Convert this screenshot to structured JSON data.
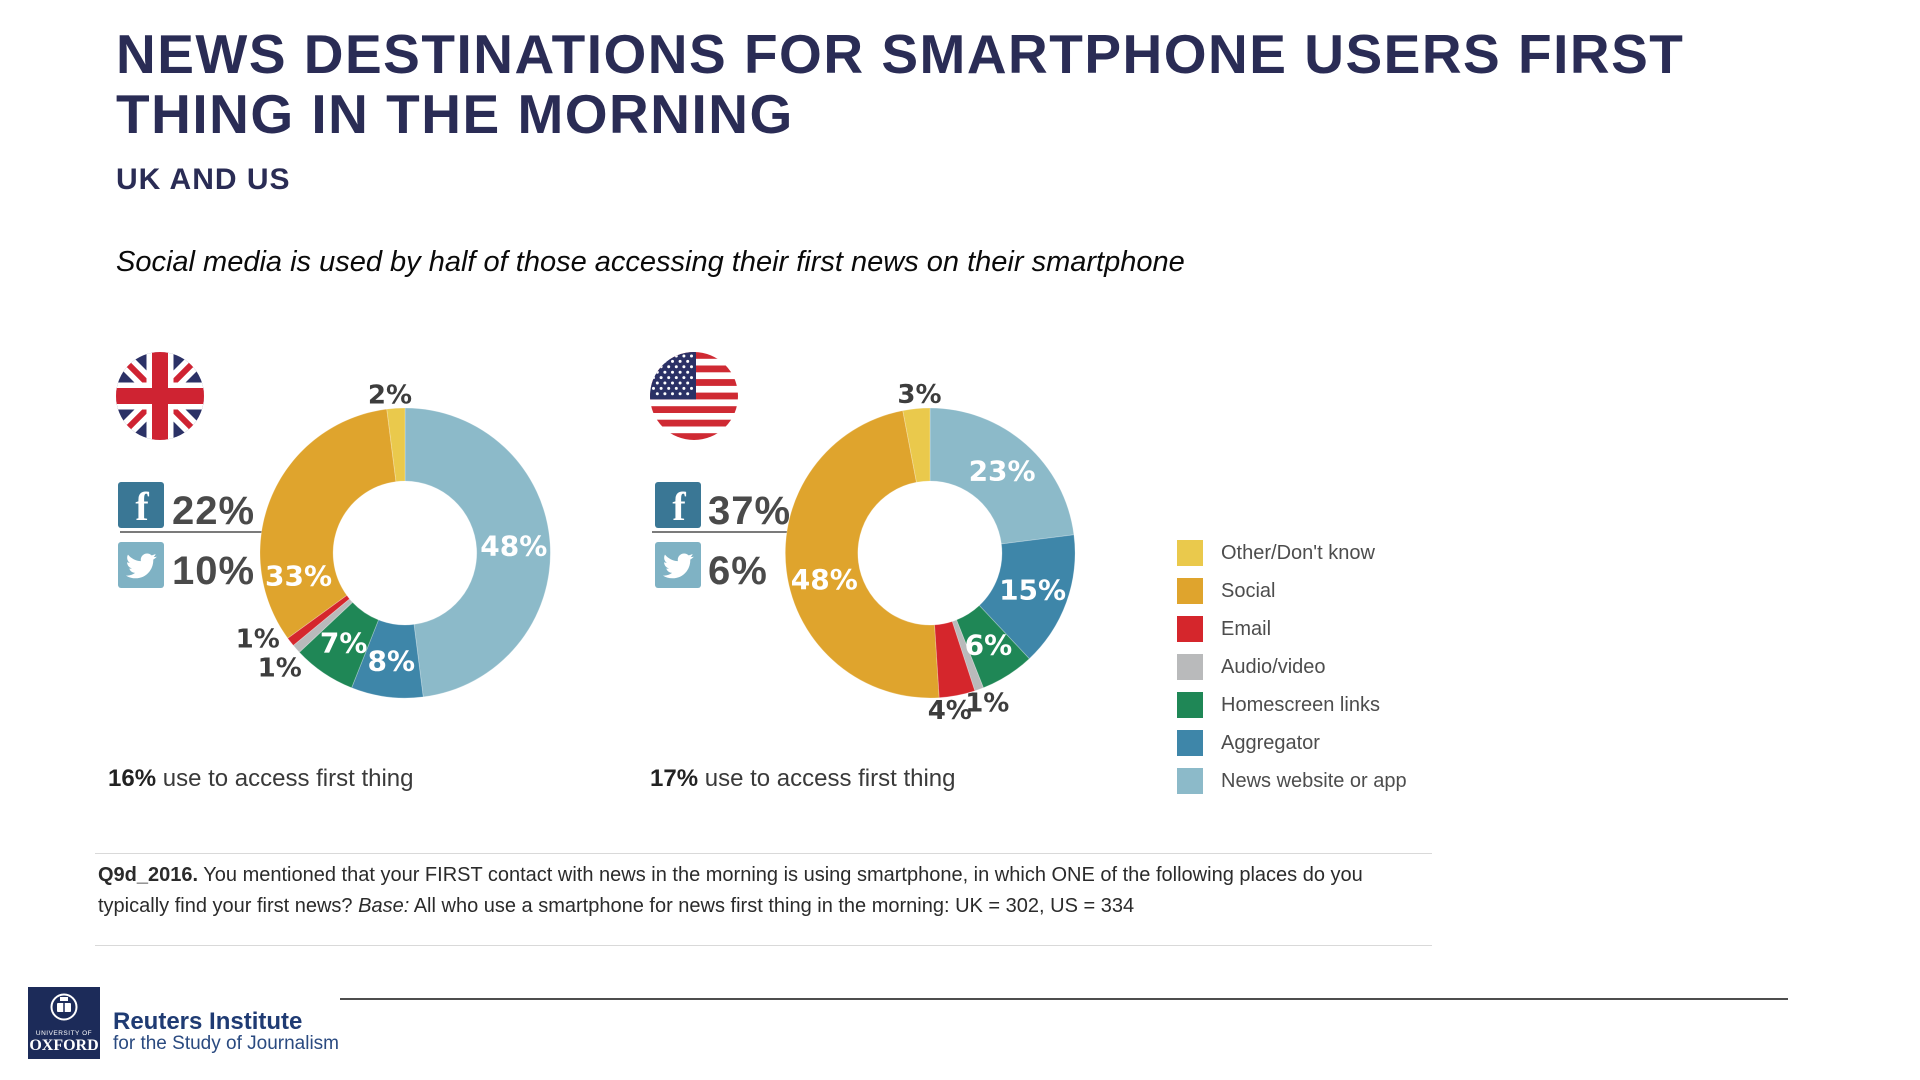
{
  "header": {
    "title_line1": "NEWS DESTINATIONS FOR SMARTPHONE USERS FIRST",
    "title_line2": "THING IN THE MORNING",
    "subtitle": "UK AND US",
    "lede": "Social media is used by half of those accessing their first news on their smartphone"
  },
  "colors": {
    "title_navy": "#2a2c55",
    "facebook_tile": "#3a7795",
    "twitter_tile": "#7fb2c4",
    "other": "#eac94c",
    "social": "#dfa42d",
    "email": "#d5262c",
    "audio_video": "#b9babb",
    "homescreen": "#1f8756",
    "aggregator": "#3e86a9",
    "news_site": "#8cbac9"
  },
  "chart_data": [
    {
      "type": "pie",
      "style": "donut",
      "country": "UK",
      "flag": "uk",
      "start_angle_deg": 0,
      "direction": "clockwise",
      "facebook_share": "22%",
      "twitter_share": "10%",
      "usage_bold": "16%",
      "usage_rest": " use to access first thing",
      "segments": [
        {
          "label": "News website or app",
          "value": 48,
          "color": "#8cbac9",
          "label_pos": "inside"
        },
        {
          "label": "Aggregator",
          "value": 8,
          "color": "#3e86a9",
          "label_pos": "inside"
        },
        {
          "label": "Homescreen links",
          "value": 7,
          "color": "#1f8756",
          "label_pos": "inside"
        },
        {
          "label": "Audio/video",
          "value": 1,
          "color": "#b9babb",
          "label_pos": "outside",
          "nudge": [
            -16,
            -29
          ]
        },
        {
          "label": "Email",
          "value": 1,
          "color": "#d5262c",
          "label_pos": "outside",
          "nudge": [
            13,
            8
          ]
        },
        {
          "label": "Social",
          "value": 33,
          "color": "#dfa42d",
          "label_pos": "inside",
          "label_frac": 0.2
        },
        {
          "label": "Other/Don't know",
          "value": 2,
          "color": "#eac94c",
          "label_pos": "outside",
          "nudge": [
            -4,
            17
          ]
        }
      ]
    },
    {
      "type": "pie",
      "style": "donut",
      "country": "US",
      "flag": "us",
      "start_angle_deg": 0,
      "direction": "clockwise",
      "facebook_share": "37%",
      "twitter_share": "6%",
      "usage_bold": "17%",
      "usage_rest": " use to access first thing",
      "segments": [
        {
          "label": "News website or app",
          "value": 23,
          "color": "#8cbac9",
          "label_pos": "inside"
        },
        {
          "label": "Aggregator",
          "value": 15,
          "color": "#3e86a9",
          "label_pos": "inside"
        },
        {
          "label": "Homescreen links",
          "value": 6,
          "color": "#1f8756",
          "label_pos": "inside"
        },
        {
          "label": "Audio/video",
          "value": 1,
          "color": "#b9babb",
          "label_pos": "outside",
          "nudge": [
            -2,
            -14
          ]
        },
        {
          "label": "Email",
          "value": 4,
          "color": "#d5262c",
          "label_pos": "outside",
          "nudge": [
            -13,
            -14
          ]
        },
        {
          "label": "Social",
          "value": 48,
          "color": "#dfa42d",
          "label_pos": "inside",
          "label_frac": 0.46
        },
        {
          "label": "Other/Don't know",
          "value": 3,
          "color": "#eac94c",
          "label_pos": "outside",
          "nudge": [
            6,
            16
          ]
        }
      ]
    }
  ],
  "legend": {
    "position": "right",
    "items": [
      {
        "label": "Other/Don't know",
        "color": "#eac94c"
      },
      {
        "label": "Social",
        "color": "#dfa42d"
      },
      {
        "label": "Email",
        "color": "#d5262c"
      },
      {
        "label": "Audio/video",
        "color": "#b9babb"
      },
      {
        "label": "Homescreen links",
        "color": "#1f8756"
      },
      {
        "label": "Aggregator",
        "color": "#3e86a9"
      },
      {
        "label": "News website or app",
        "color": "#8cbac9"
      }
    ]
  },
  "footnote": {
    "parts": [
      {
        "t": "Q9d_2016.",
        "b": true
      },
      {
        "t": " You mentioned that your FIRST contact with news in the morning is using smartphone, in which ONE of the following places do you typically find your first news? "
      },
      {
        "t": "Base:",
        "i": true
      },
      {
        "t": " All who use a smartphone for news first thing in the morning: UK = 302, US = 334"
      }
    ]
  },
  "logo": {
    "university_small": "UNIVERSITY OF",
    "university": "OXFORD",
    "org": "Reuters Institute",
    "org_sub": "for the Study of Journalism"
  }
}
